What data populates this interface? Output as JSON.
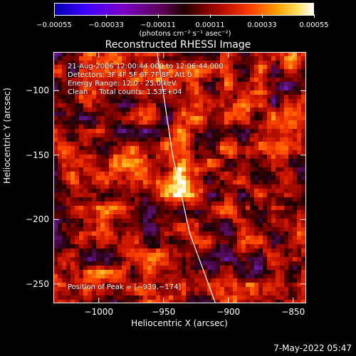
{
  "chart_data": {
    "type": "heatmap",
    "title": "Reconstructed RHESSI Image",
    "xlabel": "Heliocentric X (arcsec)",
    "ylabel": "Heliocentric Y (arcsec)",
    "xlim": [
      -1035,
      -840
    ],
    "ylim": [
      -265,
      -70
    ],
    "x_ticks": [
      "−1000",
      "−950",
      "−900",
      "−850"
    ],
    "x_tick_values": [
      -1000,
      -950,
      -900,
      -850
    ],
    "y_ticks": [
      "−100",
      "−150",
      "−200",
      "−250"
    ],
    "y_tick_values": [
      -100,
      -150,
      -200,
      -250
    ],
    "colorbar": {
      "ticks": [
        "−0.00055",
        "−0.00033",
        "−0.00011",
        "0.00011",
        "0.00033",
        "0.00055"
      ],
      "tick_values": [
        -0.00055,
        -0.00033,
        -0.00011,
        0.00011,
        0.00033,
        0.00055
      ],
      "unit_label": "(photons cm⁻² s⁻¹ asec⁻²)",
      "range": [
        -0.00055,
        0.00055
      ]
    },
    "peak_position": [
      -939,
      -174
    ],
    "limb_curve": [
      [
        -955,
        -70
      ],
      [
        -943,
        -150
      ],
      [
        -930,
        -210
      ],
      [
        -910,
        -265
      ]
    ],
    "annotations": {
      "time": "21-Aug-2006 12:00:44.000 to 12:06:44.000",
      "detectors": "Detectors: 3F 4F 5F 6F 7F 8F, Att 0",
      "energy": "Energy Range: 12.0 - 25.0 keV",
      "clean": "Clean     Total counts: 1.53E+04",
      "peak": "Position of Peak = [−939,−174]"
    }
  },
  "footer": {
    "date": "7-May-2022 05:47"
  }
}
